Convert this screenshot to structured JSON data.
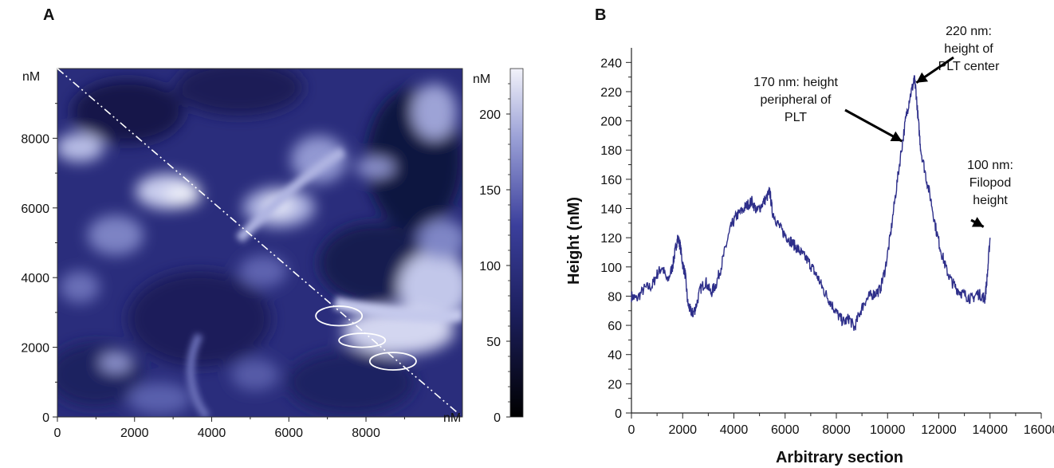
{
  "panels": {
    "a_label": "A",
    "b_label": "B"
  },
  "colors": {
    "trace": "#2e2f8a",
    "map_dark": "#101438",
    "map_mid": "#3b3f9c",
    "map_light": "#e8e8f5"
  },
  "chart_data": [
    {
      "type": "heatmap",
      "panel": "A",
      "x_unit": "nM",
      "y_unit": "nM",
      "colorbar_unit": "nM",
      "xlim": [
        0,
        10500
      ],
      "ylim": [
        0,
        10000
      ],
      "x_ticks": [
        0,
        2000,
        4000,
        6000,
        8000
      ],
      "y_ticks": [
        0,
        2000,
        4000,
        6000,
        8000
      ],
      "colorbar_range": [
        0,
        230
      ],
      "colorbar_ticks": [
        0,
        50,
        100,
        150,
        200
      ],
      "section_line": {
        "from": [
          0,
          10000
        ],
        "to": [
          10500,
          0
        ]
      },
      "highlighted_ellipses": [
        {
          "cx": 7300,
          "cy": 2900,
          "rx": 600,
          "ry": 280
        },
        {
          "cx": 7900,
          "cy": 2200,
          "rx": 600,
          "ry": 200
        },
        {
          "cx": 8700,
          "cy": 1600,
          "rx": 600,
          "ry": 250
        }
      ]
    },
    {
      "type": "line",
      "panel": "B",
      "xlabel": "Arbitrary section",
      "ylabel": "Height (nM)",
      "xlim": [
        0,
        16000
      ],
      "ylim": [
        0,
        250
      ],
      "x_ticks": [
        0,
        2000,
        4000,
        6000,
        8000,
        10000,
        12000,
        14000,
        16000
      ],
      "y_ticks": [
        0,
        20,
        40,
        60,
        80,
        100,
        120,
        140,
        160,
        180,
        200,
        220,
        240
      ],
      "grid": false,
      "series": [
        {
          "x": [
            0,
            200,
            500,
            800,
            1000,
            1200,
            1400,
            1600,
            1700,
            1800,
            1900,
            2000,
            2100,
            2200,
            2300,
            2400,
            2500,
            2700,
            2900,
            3100,
            3300,
            3500,
            3700,
            3900,
            4100,
            4300,
            4500,
            4700,
            4900,
            5100,
            5300,
            5400,
            5500,
            5700,
            5900,
            6100,
            6300,
            6500,
            6700,
            6900,
            7100,
            7300,
            7500,
            7700,
            7900,
            8100,
            8300,
            8500,
            8700,
            8900,
            9100,
            9300,
            9500,
            9700,
            9900,
            10100,
            10300,
            10500,
            10700,
            10850,
            11000,
            11050,
            11100,
            11200,
            11300,
            11500,
            11700,
            11900,
            12100,
            12300,
            12500,
            12700,
            12900,
            13100,
            13300,
            13500,
            13700,
            13800,
            13900,
            14000
          ],
          "y": [
            80,
            78,
            85,
            87,
            95,
            100,
            90,
            100,
            110,
            120,
            115,
            102,
            95,
            75,
            70,
            68,
            72,
            85,
            90,
            82,
            88,
            100,
            115,
            128,
            135,
            138,
            142,
            145,
            138,
            143,
            148,
            152,
            138,
            130,
            124,
            120,
            116,
            112,
            108,
            104,
            98,
            92,
            84,
            78,
            72,
            66,
            62,
            65,
            58,
            68,
            76,
            80,
            82,
            84,
            98,
            120,
            148,
            175,
            200,
            215,
            225,
            228,
            222,
            200,
            180,
            162,
            145,
            125,
            110,
            98,
            90,
            85,
            82,
            80,
            78,
            82,
            80,
            78,
            95,
            120
          ]
        }
      ],
      "annotations": [
        {
          "lines": [
            "220 nm:",
            "height of",
            "PLT center"
          ],
          "x": 11000,
          "y": 225
        },
        {
          "lines": [
            "170 nm: height",
            "peripheral of",
            "PLT"
          ],
          "x": 10500,
          "y": 185
        },
        {
          "lines": [
            "100 nm:",
            "Filopod",
            "height"
          ],
          "x": 13500,
          "y": 122
        }
      ]
    }
  ]
}
